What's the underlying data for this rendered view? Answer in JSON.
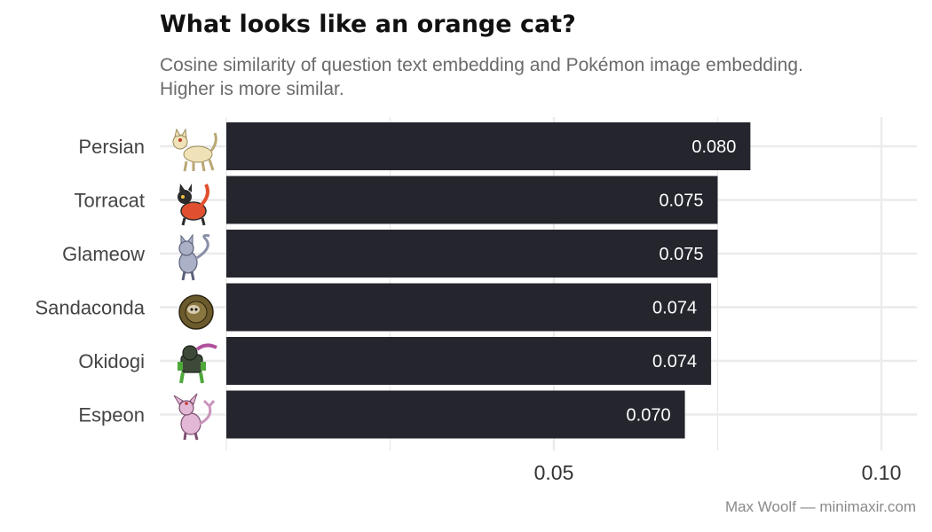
{
  "chart_data": {
    "type": "bar",
    "orientation": "horizontal",
    "title": "What looks like an orange cat?",
    "subtitle": [
      "Cosine similarity of question text embedding and Pokémon image embedding.",
      "Higher is more similar."
    ],
    "caption": "Max Woolf — minimaxir.com",
    "categories": [
      "Persian",
      "Torracat",
      "Glameow",
      "Sandaconda",
      "Okidogi",
      "Espeon"
    ],
    "values": [
      0.08,
      0.075,
      0.075,
      0.074,
      0.074,
      0.07
    ],
    "value_labels": [
      "0.080",
      "0.075",
      "0.075",
      "0.074",
      "0.074",
      "0.070"
    ],
    "category_icons": [
      "persian-sprite-icon",
      "torracat-sprite-icon",
      "glameow-sprite-icon",
      "sandaconda-sprite-icon",
      "okidogi-sprite-icon",
      "espeon-sprite-icon"
    ],
    "x_ticks": [
      0.05,
      0.1
    ],
    "x_tick_labels": [
      "0.05",
      "0.10"
    ],
    "xlim": [
      0,
      0.105
    ],
    "grid": true,
    "bar_color": "#24252d",
    "grid_color": "#ebebeb"
  }
}
